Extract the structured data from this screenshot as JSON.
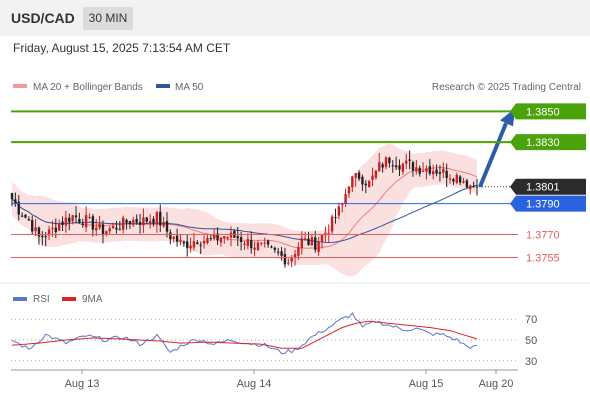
{
  "header": {
    "symbol": "USD/CAD",
    "timeframe": "30 MIN",
    "timestamp": "Friday, August 15, 2025 7:13:54 AM CET"
  },
  "legend": {
    "ma20_bb": "MA 20 + Bollinger Bands",
    "ma50": "MA 50",
    "source": "Research © 2025 Trading Central",
    "rsi": "RSI",
    "rsi_ma": "9MA"
  },
  "colors": {
    "green": "#4aa30a",
    "blue_line": "#5577cc",
    "blue_label": "#2a62e0",
    "red": "#e06060",
    "ma20": "#e88080",
    "ma50": "#335599",
    "band": "#fadada",
    "arrow": "#2d5ba8",
    "candle_up": "#c82020",
    "candle_down": "#222222",
    "rsi": "#5577cc",
    "rsi_ma": "#dd2222"
  },
  "chart_data": [
    {
      "type": "candlestick",
      "title": "USD/CAD",
      "ylim": [
        1.3743,
        1.3858
      ],
      "x_ticks": [
        "Aug 13",
        "Aug 14",
        "Aug 15",
        "Aug 20"
      ],
      "current_price": "1.3801",
      "levels": [
        {
          "label": "1.3850",
          "value": 1.385,
          "color": "#4aa30a",
          "kind": "target"
        },
        {
          "label": "1.3830",
          "value": 1.383,
          "color": "#4aa30a",
          "kind": "target"
        },
        {
          "label": "1.3790",
          "value": 1.379,
          "color": "#2a62e0",
          "kind": "pivot"
        },
        {
          "label": "1.3770",
          "value": 1.377,
          "color": "#e06060",
          "kind": "support"
        },
        {
          "label": "1.3755",
          "value": 1.3755,
          "color": "#e06060",
          "kind": "support"
        }
      ],
      "forecast_arrow": {
        "from": 1.3801,
        "to": 1.385
      },
      "close_anchors": [
        [
          0,
          1.3793
        ],
        [
          2,
          1.3786
        ],
        [
          5,
          1.3779
        ],
        [
          8,
          1.3768
        ],
        [
          11,
          1.3771
        ],
        [
          14,
          1.3777
        ],
        [
          18,
          1.3782
        ],
        [
          22,
          1.3779
        ],
        [
          27,
          1.3772
        ],
        [
          31,
          1.3775
        ],
        [
          35,
          1.3779
        ],
        [
          39,
          1.3779
        ],
        [
          43,
          1.3781
        ],
        [
          47,
          1.3769
        ],
        [
          51,
          1.3763
        ],
        [
          55,
          1.3767
        ],
        [
          59,
          1.3766
        ],
        [
          63,
          1.3769
        ],
        [
          67,
          1.3768
        ],
        [
          71,
          1.3764
        ],
        [
          75,
          1.3761
        ],
        [
          79,
          1.3757
        ],
        [
          82,
          1.3753
        ],
        [
          86,
          1.3766
        ],
        [
          90,
          1.3764
        ],
        [
          94,
          1.3774
        ],
        [
          98,
          1.3789
        ],
        [
          100,
          1.3804
        ],
        [
          103,
          1.3808
        ],
        [
          106,
          1.3803
        ],
        [
          109,
          1.3814
        ],
        [
          112,
          1.3819
        ],
        [
          115,
          1.3816
        ],
        [
          118,
          1.3815
        ],
        [
          121,
          1.3813
        ],
        [
          124,
          1.3813
        ],
        [
          127,
          1.3811
        ],
        [
          130,
          1.3809
        ],
        [
          133,
          1.3807
        ],
        [
          136,
          1.3802
        ],
        [
          138,
          1.3801
        ]
      ],
      "candle_count": 139
    },
    {
      "type": "line",
      "title": "RSI",
      "ylim": [
        25,
        75
      ],
      "y_ticks": [
        70,
        50,
        30
      ],
      "series": [
        {
          "name": "RSI",
          "color": "#5577cc",
          "anchors": [
            [
              0,
              50
            ],
            [
              5,
              41
            ],
            [
              10,
              55
            ],
            [
              16,
              47
            ],
            [
              22,
              54
            ],
            [
              28,
              50
            ],
            [
              33,
              53
            ],
            [
              38,
              46
            ],
            [
              43,
              54
            ],
            [
              47,
              38
            ],
            [
              51,
              46
            ],
            [
              55,
              51
            ],
            [
              60,
              46
            ],
            [
              65,
              50
            ],
            [
              70,
              47
            ],
            [
              75,
              45
            ],
            [
              80,
              38
            ],
            [
              84,
              40
            ],
            [
              89,
              53
            ],
            [
              94,
              62
            ],
            [
              98,
              70
            ],
            [
              101,
              75
            ],
            [
              104,
              62
            ],
            [
              108,
              68
            ],
            [
              112,
              64
            ],
            [
              116,
              60
            ],
            [
              120,
              61
            ],
            [
              124,
              56
            ],
            [
              128,
              55
            ],
            [
              132,
              50
            ],
            [
              135,
              44
            ],
            [
              138,
              43
            ]
          ]
        },
        {
          "name": "9MA",
          "color": "#dd2222",
          "anchors": [
            [
              0,
              45
            ],
            [
              8,
              47
            ],
            [
              16,
              50
            ],
            [
              24,
              52
            ],
            [
              32,
              51
            ],
            [
              38,
              50
            ],
            [
              44,
              49
            ],
            [
              50,
              47
            ],
            [
              58,
              48
            ],
            [
              66,
              47
            ],
            [
              74,
              46
            ],
            [
              80,
              42
            ],
            [
              86,
              42
            ],
            [
              92,
              52
            ],
            [
              98,
              62
            ],
            [
              102,
              66
            ],
            [
              106,
              68
            ],
            [
              112,
              66
            ],
            [
              118,
              64
            ],
            [
              124,
              62
            ],
            [
              130,
              59
            ],
            [
              135,
              54
            ],
            [
              138,
              51
            ]
          ]
        }
      ]
    }
  ]
}
